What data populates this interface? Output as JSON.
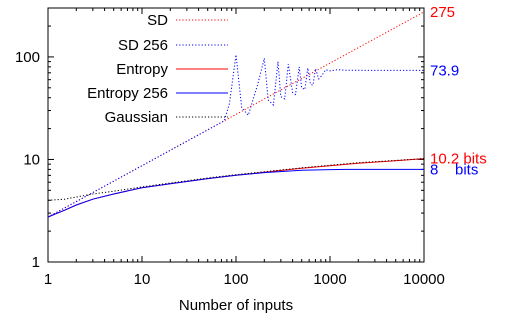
{
  "chart_data": {
    "type": "line",
    "title": "",
    "xlabel": "Number of inputs",
    "ylabel": "",
    "x_scale": "log",
    "y_scale": "log",
    "xlim": [
      1,
      10000
    ],
    "ylim": [
      1,
      300
    ],
    "grid": false,
    "legend_position": "top-left",
    "x_ticks": [
      {
        "value": 1,
        "label": "1"
      },
      {
        "value": 10,
        "label": "10"
      },
      {
        "value": 100,
        "label": "100"
      },
      {
        "value": 1000,
        "label": "1000"
      },
      {
        "value": 10000,
        "label": "10000"
      }
    ],
    "y_ticks": [
      {
        "value": 1,
        "label": "1"
      },
      {
        "value": 10,
        "label": "10"
      },
      {
        "value": 100,
        "label": "100"
      }
    ],
    "series": [
      {
        "name": "SD",
        "color": "#ff0000",
        "dash": "dotted",
        "x": [
          1,
          10,
          100,
          1000,
          10000
        ],
        "y": [
          2.75,
          8.7,
          27.5,
          87,
          275
        ]
      },
      {
        "name": "SD 256",
        "color": "#0000ff",
        "dash": "dotted",
        "x": [
          1,
          10,
          60,
          75,
          85,
          100,
          115,
          135,
          170,
          200,
          220,
          250,
          280,
          300,
          330,
          360,
          400,
          430,
          470,
          500,
          540,
          580,
          620,
          660,
          700,
          760,
          820,
          900,
          1000,
          1200,
          1500,
          2000,
          3000,
          5000,
          10000
        ],
        "y": [
          2.75,
          8.7,
          21.3,
          23.8,
          35,
          105,
          32,
          27,
          54,
          97,
          38,
          34,
          90,
          41,
          39,
          85,
          45,
          43,
          80,
          50,
          48,
          78,
          54,
          53,
          77,
          61,
          66,
          75,
          73,
          75,
          74,
          74,
          73.9,
          73.9,
          73.9
        ]
      },
      {
        "name": "Entropy",
        "color": "#ff0000",
        "dash": "solid",
        "x": [
          1,
          1.5,
          2,
          3,
          5,
          10,
          20,
          50,
          100,
          200,
          500,
          1000,
          2000,
          5000,
          10000
        ],
        "y": [
          2.75,
          3.2,
          3.6,
          4.1,
          4.6,
          5.3,
          5.8,
          6.5,
          7.0,
          7.5,
          8.2,
          8.7,
          9.2,
          9.7,
          10.2
        ]
      },
      {
        "name": "Entropy 256",
        "color": "#0000ff",
        "dash": "solid",
        "x": [
          1,
          1.5,
          2,
          3,
          5,
          10,
          20,
          50,
          100,
          200,
          500,
          1000,
          1500,
          2000,
          3000,
          5000,
          10000
        ],
        "y": [
          2.75,
          3.2,
          3.6,
          4.1,
          4.6,
          5.3,
          5.8,
          6.5,
          7.0,
          7.45,
          7.85,
          7.97,
          8.0,
          8.0,
          8.0,
          8.0,
          8.0
        ]
      },
      {
        "name": "Gaussian",
        "color": "#000000",
        "dash": "dotted",
        "x": [
          1,
          1.5,
          2,
          3,
          5,
          10,
          20,
          50,
          100,
          200,
          500,
          1000,
          2000,
          5000,
          10000
        ],
        "y": [
          4.0,
          4.1,
          4.3,
          4.6,
          4.9,
          5.4,
          5.9,
          6.6,
          7.1,
          7.6,
          8.3,
          8.8,
          9.3,
          9.8,
          10.2
        ]
      }
    ],
    "annotations": [
      {
        "text": "275",
        "color": "#ff0000",
        "y": 275
      },
      {
        "text": "73.9",
        "color": "#0000ff",
        "y": 73.9
      },
      {
        "text": "10.2 bits",
        "color": "#ff0000",
        "y": 10.2
      },
      {
        "text": "8    bits",
        "color": "#0000ff",
        "y": 8
      }
    ]
  }
}
